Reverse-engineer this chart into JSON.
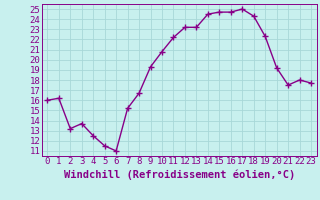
{
  "x": [
    0,
    1,
    2,
    3,
    4,
    5,
    6,
    7,
    8,
    9,
    10,
    11,
    12,
    13,
    14,
    15,
    16,
    17,
    18,
    19,
    20,
    21,
    22,
    23
  ],
  "y": [
    16,
    16.2,
    13.2,
    13.7,
    12.5,
    11.5,
    11.0,
    15.2,
    16.7,
    19.3,
    20.8,
    22.2,
    23.2,
    23.2,
    24.5,
    24.7,
    24.7,
    25.0,
    24.3,
    22.3,
    19.2,
    17.5,
    18.0,
    17.7
  ],
  "line_color": "#880088",
  "marker": "+",
  "markersize": 4,
  "linewidth": 1.0,
  "xlabel": "Windchill (Refroidissement éolien,°C)",
  "yticks": [
    11,
    12,
    13,
    14,
    15,
    16,
    17,
    18,
    19,
    20,
    21,
    22,
    23,
    24,
    25
  ],
  "xlim": [
    -0.5,
    23.5
  ],
  "ylim": [
    10.5,
    25.5
  ],
  "bg_color": "#c8f0ee",
  "grid_color": "#a8d8d8",
  "tick_fontsize": 6.5,
  "xlabel_fontsize": 7.5
}
